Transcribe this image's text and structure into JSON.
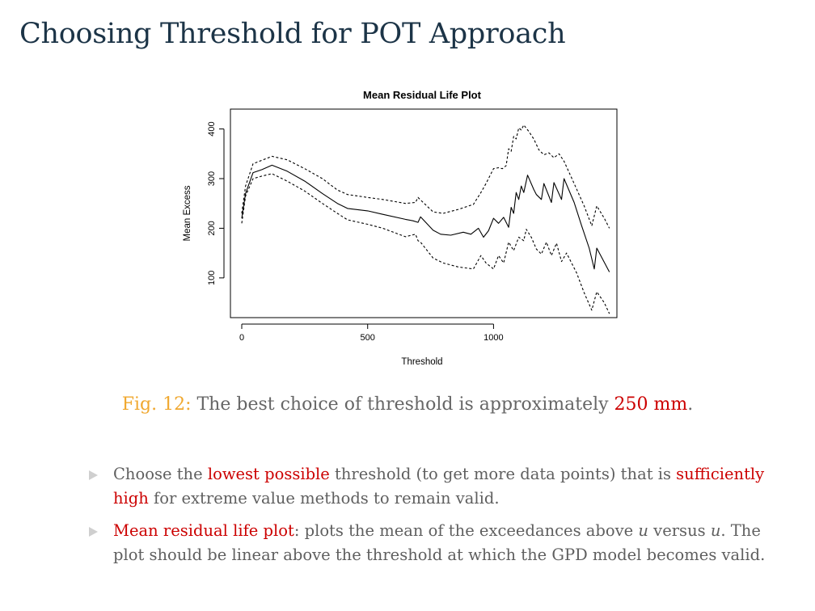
{
  "colors": {
    "title": "#1c3447",
    "highlight": "#cc0000",
    "fig_label": "#f0a830",
    "text": "#5f5f5f",
    "bullet_marker": "#cfcfcf"
  },
  "slide": {
    "title": "Choosing Threshold for POT Approach"
  },
  "caption": {
    "label": "Fig. 12:",
    "text_before": " The best choice of threshold is approximately ",
    "value": "250 mm",
    "text_after": "."
  },
  "bullets": [
    {
      "p1": "Choose the ",
      "h1": "lowest possible",
      "p2": " threshold (to get more data points) that is ",
      "h2": "sufficiently high",
      "p3": " for extreme value methods to remain valid."
    },
    {
      "h1": "Mean residual life plot",
      "p1": ": plots the mean of the exceedances above ",
      "v1": "u",
      "p2": " versus ",
      "v2": "u",
      "p3": ". The plot should be linear above the threshold at which the GPD model becomes valid."
    }
  ],
  "chart_data": {
    "type": "line",
    "title": "Mean Residual Life Plot",
    "xlabel": "Threshold",
    "ylabel": "Mean Excess",
    "xlim": [
      -45,
      1490
    ],
    "ylim": [
      20,
      440
    ],
    "xticks": [
      0,
      500,
      1000
    ],
    "xtick_labels": [
      "0",
      "500",
      "1000"
    ],
    "yticks": [
      100,
      200,
      300,
      400
    ],
    "ytick_labels": [
      "100",
      "200",
      "300",
      "400"
    ],
    "grid": false,
    "legend": "none",
    "series": [
      {
        "style": "dashed",
        "x": [
          0,
          15,
          45,
          80,
          120,
          180,
          250,
          320,
          380,
          420,
          500,
          560,
          650,
          690,
          700,
          710,
          760,
          800,
          860,
          920,
          950,
          970,
          1000,
          1020,
          1035,
          1050,
          1060,
          1070,
          1080,
          1090,
          1100,
          1110,
          1120,
          1140,
          1160,
          1180,
          1200,
          1220,
          1240,
          1260,
          1280,
          1320,
          1360,
          1390,
          1410,
          1440,
          1460
        ],
        "y": [
          230,
          285,
          330,
          337,
          345,
          338,
          320,
          300,
          277,
          268,
          262,
          258,
          250,
          252,
          262,
          257,
          233,
          230,
          238,
          248,
          272,
          290,
          320,
          322,
          320,
          326,
          360,
          355,
          385,
          380,
          402,
          398,
          408,
          395,
          380,
          358,
          348,
          352,
          342,
          350,
          335,
          290,
          245,
          205,
          245,
          220,
          200
        ]
      },
      {
        "style": "solid",
        "x": [
          0,
          15,
          45,
          80,
          120,
          180,
          250,
          320,
          380,
          420,
          500,
          560,
          650,
          680,
          700,
          710,
          760,
          790,
          830,
          880,
          910,
          940,
          960,
          980,
          1000,
          1020,
          1040,
          1060,
          1070,
          1080,
          1090,
          1100,
          1110,
          1120,
          1130,
          1135,
          1160,
          1170,
          1190,
          1200,
          1230,
          1240,
          1270,
          1280,
          1320,
          1350,
          1380,
          1400,
          1410,
          1460
        ],
        "y": [
          220,
          270,
          312,
          318,
          327,
          315,
          295,
          270,
          250,
          240,
          235,
          228,
          218,
          215,
          212,
          223,
          196,
          188,
          186,
          192,
          188,
          200,
          182,
          195,
          220,
          210,
          222,
          202,
          242,
          230,
          272,
          258,
          285,
          272,
          295,
          307,
          278,
          268,
          258,
          290,
          252,
          292,
          258,
          300,
          252,
          205,
          160,
          118,
          160,
          112
        ]
      },
      {
        "style": "dashed",
        "x": [
          0,
          15,
          45,
          80,
          120,
          180,
          250,
          320,
          380,
          420,
          500,
          560,
          650,
          690,
          700,
          710,
          760,
          800,
          860,
          920,
          950,
          970,
          1000,
          1020,
          1040,
          1060,
          1080,
          1100,
          1120,
          1130,
          1150,
          1170,
          1190,
          1210,
          1230,
          1250,
          1270,
          1290,
          1330,
          1360,
          1390,
          1410,
          1440,
          1460
        ],
        "y": [
          210,
          265,
          300,
          305,
          310,
          295,
          275,
          250,
          230,
          217,
          208,
          200,
          183,
          188,
          175,
          172,
          140,
          130,
          122,
          118,
          145,
          130,
          118,
          145,
          130,
          172,
          155,
          182,
          175,
          198,
          182,
          158,
          148,
          172,
          145,
          170,
          133,
          150,
          110,
          70,
          35,
          72,
          50,
          28
        ]
      }
    ]
  }
}
